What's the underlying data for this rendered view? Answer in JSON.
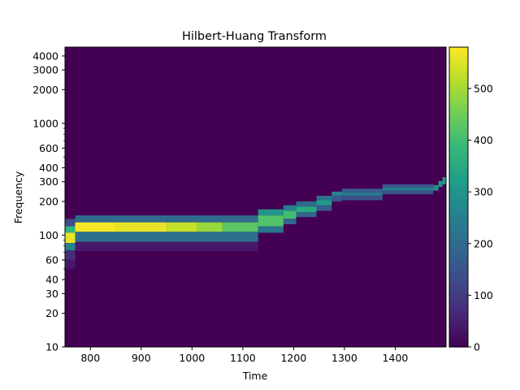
{
  "chart_data": {
    "type": "heatmap",
    "title": "Hilbert-Huang Transform",
    "xlabel": "Time",
    "ylabel": "Frequency",
    "xlim": [
      750,
      1500
    ],
    "ylim": [
      10,
      4800
    ],
    "yscale": "log",
    "x_ticks": [
      800,
      900,
      1000,
      1100,
      1200,
      1300,
      1400
    ],
    "y_ticks": [
      10,
      20,
      30,
      40,
      60,
      100,
      200,
      300,
      400,
      600,
      1000,
      2000,
      3000,
      4000
    ],
    "colorbar": {
      "min": 0,
      "max": 580,
      "ticks": [
        0,
        100,
        200,
        300,
        400,
        500
      ],
      "colormap": "viridis"
    },
    "cells": [
      {
        "x0": 750,
        "x1": 770,
        "y0": 120,
        "y1": 140,
        "value": 130
      },
      {
        "x0": 750,
        "x1": 770,
        "y0": 105,
        "y1": 120,
        "value": 380
      },
      {
        "x0": 750,
        "x1": 770,
        "y0": 85,
        "y1": 105,
        "value": 560
      },
      {
        "x0": 750,
        "x1": 770,
        "y0": 73,
        "y1": 85,
        "value": 260
      },
      {
        "x0": 750,
        "x1": 770,
        "y0": 60,
        "y1": 73,
        "value": 75
      },
      {
        "x0": 750,
        "x1": 770,
        "y0": 50,
        "y1": 60,
        "value": 35
      },
      {
        "x0": 770,
        "x1": 1130,
        "y0": 130,
        "y1": 150,
        "value": 200
      },
      {
        "x0": 770,
        "x1": 850,
        "y0": 107,
        "y1": 130,
        "value": 575
      },
      {
        "x0": 850,
        "x1": 950,
        "y0": 107,
        "y1": 130,
        "value": 560
      },
      {
        "x0": 950,
        "x1": 1010,
        "y0": 107,
        "y1": 130,
        "value": 530
      },
      {
        "x0": 1010,
        "x1": 1060,
        "y0": 107,
        "y1": 130,
        "value": 490
      },
      {
        "x0": 1060,
        "x1": 1130,
        "y0": 107,
        "y1": 130,
        "value": 430
      },
      {
        "x0": 770,
        "x1": 1130,
        "y0": 87,
        "y1": 107,
        "value": 210
      },
      {
        "x0": 770,
        "x1": 1130,
        "y0": 72,
        "y1": 87,
        "value": 40
      },
      {
        "x0": 1130,
        "x1": 1180,
        "y0": 150,
        "y1": 170,
        "value": 300
      },
      {
        "x0": 1130,
        "x1": 1180,
        "y0": 120,
        "y1": 150,
        "value": 420
      },
      {
        "x0": 1130,
        "x1": 1180,
        "y0": 105,
        "y1": 120,
        "value": 220
      },
      {
        "x0": 1180,
        "x1": 1205,
        "y0": 165,
        "y1": 185,
        "value": 250
      },
      {
        "x0": 1180,
        "x1": 1205,
        "y0": 140,
        "y1": 165,
        "value": 400
      },
      {
        "x0": 1180,
        "x1": 1205,
        "y0": 125,
        "y1": 140,
        "value": 190
      },
      {
        "x0": 1205,
        "x1": 1245,
        "y0": 180,
        "y1": 200,
        "value": 200
      },
      {
        "x0": 1205,
        "x1": 1245,
        "y0": 160,
        "y1": 180,
        "value": 350
      },
      {
        "x0": 1205,
        "x1": 1245,
        "y0": 145,
        "y1": 160,
        "value": 190
      },
      {
        "x0": 1245,
        "x1": 1275,
        "y0": 205,
        "y1": 225,
        "value": 220
      },
      {
        "x0": 1245,
        "x1": 1275,
        "y0": 185,
        "y1": 205,
        "value": 320
      },
      {
        "x0": 1245,
        "x1": 1275,
        "y0": 165,
        "y1": 185,
        "value": 170
      },
      {
        "x0": 1275,
        "x1": 1295,
        "y0": 225,
        "y1": 245,
        "value": 260
      },
      {
        "x0": 1275,
        "x1": 1295,
        "y0": 200,
        "y1": 225,
        "value": 160
      },
      {
        "x0": 1295,
        "x1": 1375,
        "y0": 240,
        "y1": 260,
        "value": 170
      },
      {
        "x0": 1295,
        "x1": 1375,
        "y0": 225,
        "y1": 240,
        "value": 240
      },
      {
        "x0": 1295,
        "x1": 1375,
        "y0": 205,
        "y1": 225,
        "value": 140
      },
      {
        "x0": 1375,
        "x1": 1475,
        "y0": 265,
        "y1": 285,
        "value": 160
      },
      {
        "x0": 1375,
        "x1": 1475,
        "y0": 250,
        "y1": 265,
        "value": 260
      },
      {
        "x0": 1375,
        "x1": 1475,
        "y0": 232,
        "y1": 250,
        "value": 150
      },
      {
        "x0": 1475,
        "x1": 1485,
        "y0": 250,
        "y1": 280,
        "value": 280
      },
      {
        "x0": 1485,
        "x1": 1493,
        "y0": 270,
        "y1": 305,
        "value": 300
      },
      {
        "x0": 1493,
        "x1": 1500,
        "y0": 285,
        "y1": 330,
        "value": 320
      }
    ]
  }
}
